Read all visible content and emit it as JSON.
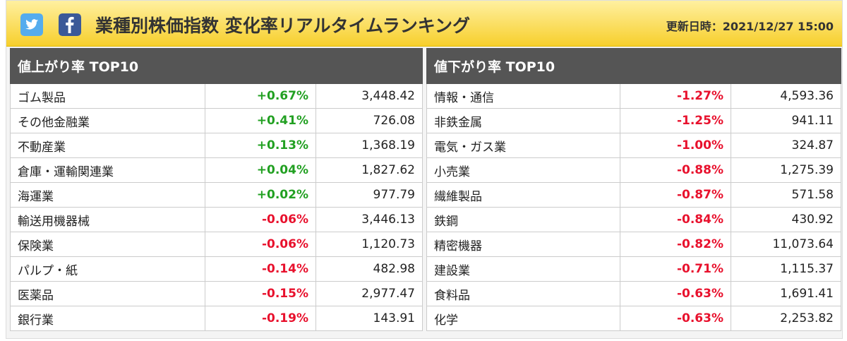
{
  "header": {
    "title": "業種別株価指数 変化率リアルタイムランキング",
    "updated": "更新日時：2021/12/27 15:00"
  },
  "tables": [
    {
      "title": "値上がり率 TOP10",
      "rows": [
        {
          "name": "ゴム製品",
          "change": "+0.67%",
          "value": "3,448.42",
          "color": "#22a022"
        },
        {
          "name": "その他金融業",
          "change": "+0.41%",
          "value": "726.08",
          "color": "#22a022"
        },
        {
          "name": "不動産業",
          "change": "+0.13%",
          "value": "1,368.19",
          "color": "#22a022"
        },
        {
          "name": "倉庫・運輸関連業",
          "change": "+0.04%",
          "value": "1,827.62",
          "color": "#22a022"
        },
        {
          "name": "海運業",
          "change": "+0.02%",
          "value": "977.79",
          "color": "#22a022"
        },
        {
          "name": "輸送用機器械",
          "change": "-0.06%",
          "value": "3,446.13",
          "color": "#e8112d"
        },
        {
          "name": "保険業",
          "change": "-0.06%",
          "value": "1,120.73",
          "color": "#e8112d"
        },
        {
          "name": "パルプ・紙",
          "change": "-0.14%",
          "value": "482.98",
          "color": "#e8112d"
        },
        {
          "name": "医薬品",
          "change": "-0.15%",
          "value": "2,977.47",
          "color": "#e8112d"
        },
        {
          "name": "銀行業",
          "change": "-0.19%",
          "value": "143.91",
          "color": "#e8112d"
        }
      ]
    },
    {
      "title": "値下がり率 TOP10",
      "rows": [
        {
          "name": "情報・通信",
          "change": "-1.27%",
          "value": "4,593.36",
          "color": "#e8112d"
        },
        {
          "name": "非鉄金属",
          "change": "-1.25%",
          "value": "941.11",
          "color": "#e8112d"
        },
        {
          "name": "電気・ガス業",
          "change": "-1.00%",
          "value": "324.87",
          "color": "#e8112d"
        },
        {
          "name": "小売業",
          "change": "-0.88%",
          "value": "1,275.39",
          "color": "#e8112d"
        },
        {
          "name": "繊維製品",
          "change": "-0.87%",
          "value": "571.58",
          "color": "#e8112d"
        },
        {
          "name": "鉄鋼",
          "change": "-0.84%",
          "value": "430.92",
          "color": "#e8112d"
        },
        {
          "name": "精密機器",
          "change": "-0.82%",
          "value": "11,073.64",
          "color": "#e8112d"
        },
        {
          "name": "建設業",
          "change": "-0.71%",
          "value": "1,115.37",
          "color": "#e8112d"
        },
        {
          "name": "食料品",
          "change": "-0.63%",
          "value": "1,691.41",
          "color": "#e8112d"
        },
        {
          "name": "化学",
          "change": "-0.63%",
          "value": "2,253.82",
          "color": "#e8112d"
        }
      ]
    }
  ]
}
